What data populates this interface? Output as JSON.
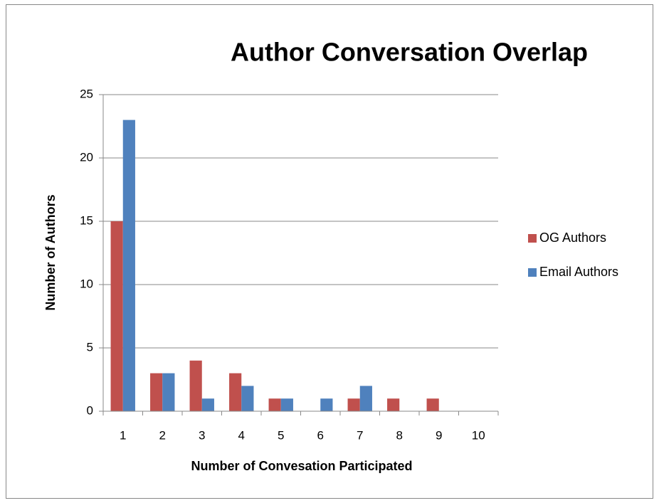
{
  "chart_data": {
    "type": "bar",
    "title": "Author Conversation Overlap",
    "x_label": "Number of Convesation Participated",
    "y_label": "Number of Authors",
    "categories": [
      "1",
      "2",
      "3",
      "4",
      "5",
      "6",
      "7",
      "8",
      "9",
      "10"
    ],
    "series": [
      {
        "name": "OG Authors",
        "color": "#c0504d",
        "values": [
          15,
          3,
          4,
          3,
          1,
          0,
          1,
          1,
          1,
          0
        ]
      },
      {
        "name": "Email Authors",
        "color": "#4f81bd",
        "values": [
          23,
          3,
          1,
          2,
          1,
          1,
          2,
          0,
          0,
          0
        ]
      }
    ],
    "ylim": [
      0,
      25
    ],
    "yticks": [
      0,
      5,
      10,
      15,
      20,
      25
    ],
    "grid": true,
    "legend": "right"
  }
}
